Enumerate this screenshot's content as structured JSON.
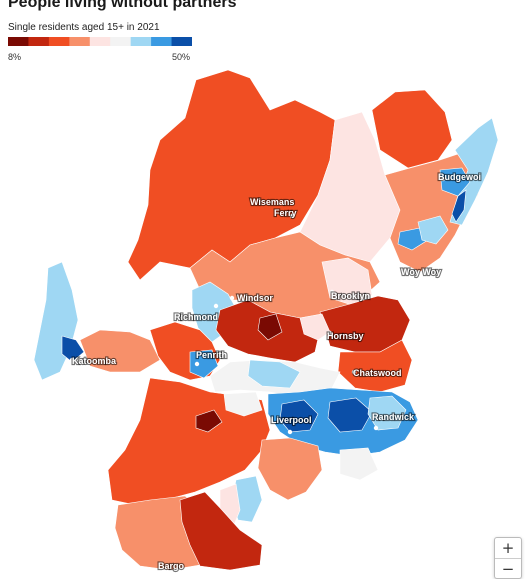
{
  "title": "People living without partners",
  "subtitle": "Single residents aged 15+ in 2021",
  "legend": {
    "min_label": "8%",
    "max_label": "50%",
    "colors": [
      "#7a0a03",
      "#c2270f",
      "#f04e23",
      "#f7906a",
      "#fde4e2",
      "#f3f3f3",
      "#9fd7f3",
      "#3a9ae2",
      "#0b4fa8"
    ]
  },
  "places": [
    {
      "name": "Wisemans",
      "name2": "Ferry"
    },
    {
      "name": "Budgewoi"
    },
    {
      "name": "Woy Woy"
    },
    {
      "name": "Windsor"
    },
    {
      "name": "Richmond"
    },
    {
      "name": "Brooklyn"
    },
    {
      "name": "Hornsby"
    },
    {
      "name": "Katoomba"
    },
    {
      "name": "Penrith"
    },
    {
      "name": "Chatswood"
    },
    {
      "name": "Liverpool"
    },
    {
      "name": "Randwick"
    },
    {
      "name": "Bargo"
    }
  ],
  "controls": {
    "zoom_in": "+",
    "zoom_out": "−"
  }
}
